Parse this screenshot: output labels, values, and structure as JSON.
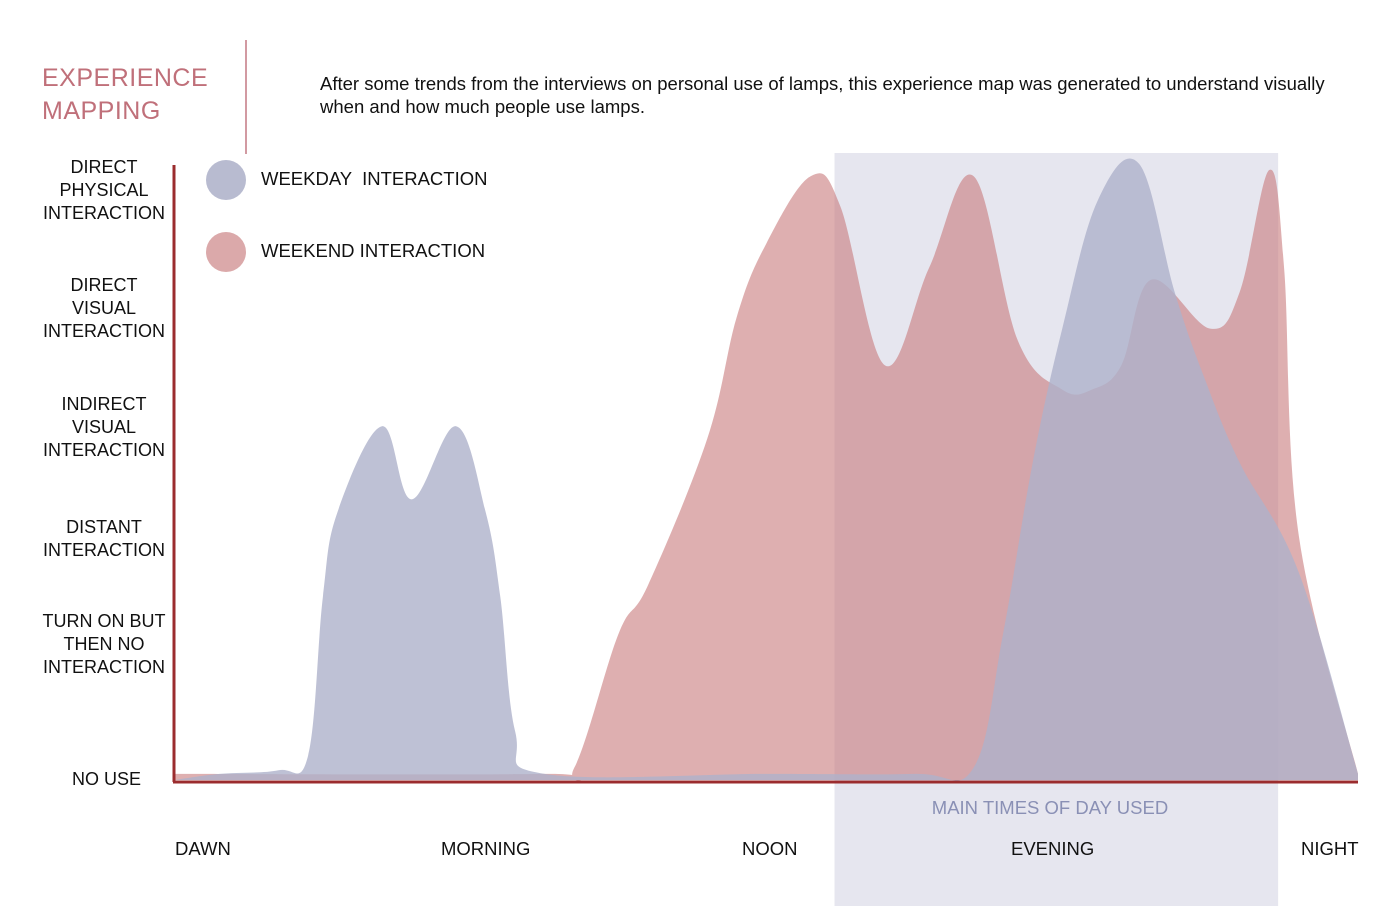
{
  "header": {
    "title_line1": "EXPERIENCE",
    "title_line2": "MAPPING",
    "intro": "After some trends from the interviews on personal use of lamps, this experience map was generated to understand visually when and how much people use lamps."
  },
  "colors": {
    "weekday": "#aeb2cb",
    "weekend": "#c8797b",
    "axis": "#9b2c2e",
    "highlight": "#e6e6ef",
    "title": "#c0707a",
    "highlight_caption": "#8a90b5"
  },
  "chart_data": {
    "type": "area",
    "title": "",
    "xlabel": "",
    "ylabel": "",
    "x_categories": [
      "DAWN",
      "MORNING",
      "NOON",
      "EVENING",
      "NIGHT"
    ],
    "y_levels": [
      "NO USE",
      "TURN ON BUT\nTHEN NO\nINTERACTION",
      "DISTANT\nINTERACTION",
      "INDIRECT\nVISUAL\nINTERACTION",
      "DIRECT\nVISUAL\nINTERACTION",
      "DIRECT\nPHYSICAL\nINTERACTION"
    ],
    "xlim": [
      0,
      4
    ],
    "ylim": [
      0,
      5
    ],
    "highlight_region": {
      "x_range": [
        2.23,
        3.73
      ],
      "label": "MAIN TIMES OF DAY USED"
    },
    "legend_placement": "top-left",
    "series": [
      {
        "name": "WEEKDAY  INTERACTION",
        "color": "#aeb2cb",
        "opacity": 0.8,
        "points": [
          [
            0.0,
            0.0
          ],
          [
            0.15,
            0.05
          ],
          [
            0.35,
            0.08
          ],
          [
            0.45,
            0.2
          ],
          [
            0.5,
            1.5
          ],
          [
            0.55,
            2.2
          ],
          [
            0.7,
            2.9
          ],
          [
            0.8,
            2.3
          ],
          [
            0.95,
            2.9
          ],
          [
            1.05,
            2.2
          ],
          [
            1.1,
            1.5
          ],
          [
            1.15,
            0.4
          ],
          [
            1.25,
            0.05
          ],
          [
            2.0,
            0.05
          ],
          [
            2.5,
            0.05
          ],
          [
            2.7,
            0.1
          ],
          [
            2.8,
            1.2
          ],
          [
            2.9,
            2.6
          ],
          [
            3.0,
            3.7
          ],
          [
            3.12,
            4.75
          ],
          [
            3.26,
            5.05
          ],
          [
            3.38,
            4.0
          ],
          [
            3.48,
            3.3
          ],
          [
            3.6,
            2.6
          ],
          [
            3.8,
            1.7
          ],
          [
            4.0,
            0.05
          ]
        ]
      },
      {
        "name": "WEEKEND INTERACTION",
        "color": "#c8797b",
        "opacity": 0.6,
        "points": [
          [
            0.0,
            0.05
          ],
          [
            1.25,
            0.05
          ],
          [
            1.35,
            0.1
          ],
          [
            1.5,
            1.2
          ],
          [
            1.6,
            1.6
          ],
          [
            1.8,
            2.8
          ],
          [
            1.9,
            3.8
          ],
          [
            2.0,
            4.4
          ],
          [
            2.15,
            4.95
          ],
          [
            2.25,
            4.7
          ],
          [
            2.4,
            3.4
          ],
          [
            2.55,
            4.2
          ],
          [
            2.7,
            4.95
          ],
          [
            2.85,
            3.6
          ],
          [
            3.0,
            3.2
          ],
          [
            3.1,
            3.2
          ],
          [
            3.2,
            3.4
          ],
          [
            3.3,
            4.1
          ],
          [
            3.5,
            3.7
          ],
          [
            3.6,
            4.0
          ],
          [
            3.7,
            5.0
          ],
          [
            3.75,
            4.2
          ],
          [
            3.8,
            2.0
          ],
          [
            4.0,
            0.05
          ]
        ]
      }
    ]
  },
  "legend": [
    {
      "label": "WEEKDAY  INTERACTION",
      "color": "#aeb2cb"
    },
    {
      "label": "WEEKEND INTERACTION",
      "color": "#c8797b"
    }
  ]
}
